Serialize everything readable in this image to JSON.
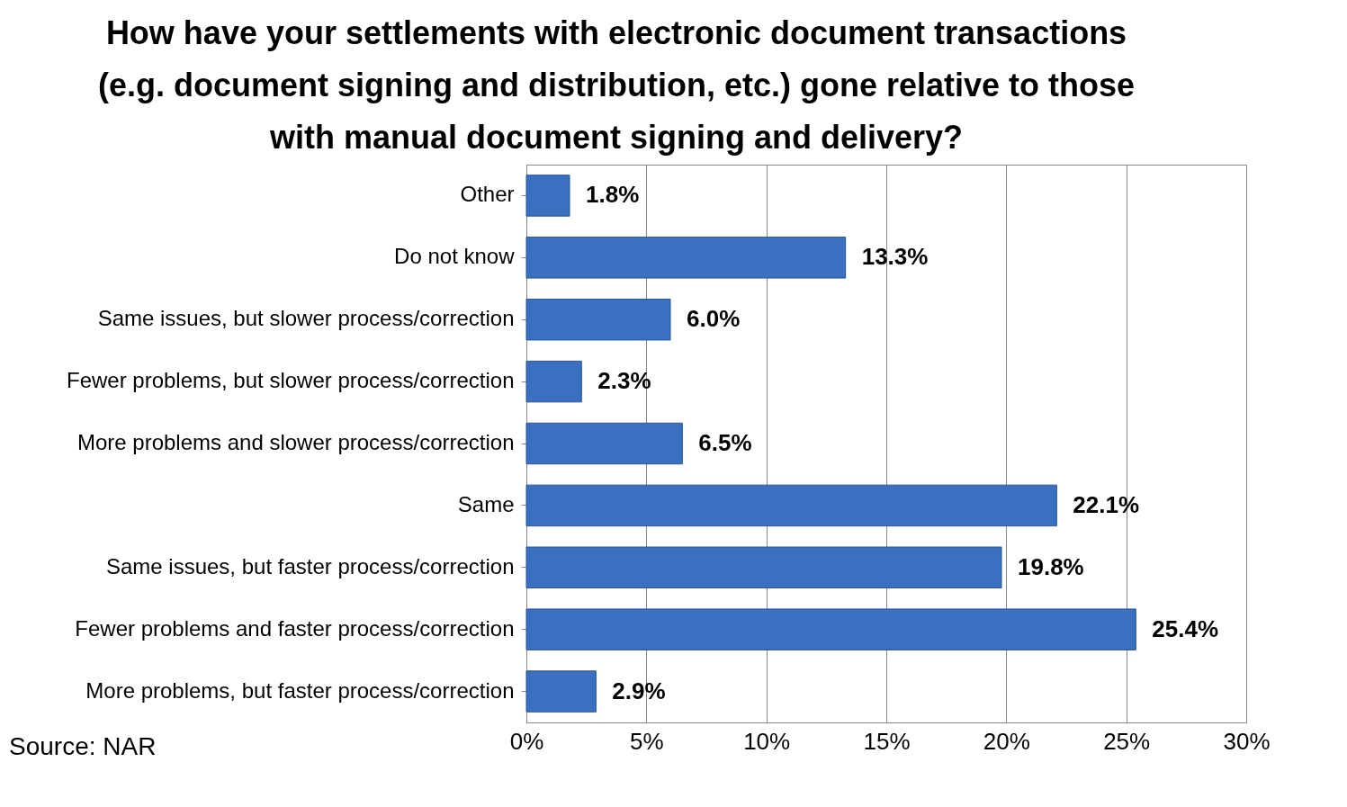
{
  "chart_data": {
    "type": "bar",
    "orientation": "horizontal",
    "title": "How have your settlements with electronic document transactions\n(e.g. document signing and distribution, etc.) gone relative to those\nwith manual document signing and delivery?",
    "categories": [
      "Other",
      "Do not know",
      "Same issues, but slower process/correction",
      "Fewer problems, but slower process/correction",
      "More problems and slower process/correction",
      "Same",
      "Same issues, but faster process/correction",
      "Fewer problems and faster process/correction",
      "More problems, but faster process/correction"
    ],
    "values": [
      1.8,
      13.3,
      6.0,
      2.3,
      6.5,
      22.1,
      19.8,
      25.4,
      2.9
    ],
    "value_labels": [
      "1.8%",
      "13.3%",
      "6.0%",
      "2.3%",
      "6.5%",
      "22.1%",
      "19.8%",
      "25.4%",
      "2.9%"
    ],
    "color": "#3b70c0",
    "xlim": [
      0,
      30
    ],
    "xticks": [
      {
        "value": 0,
        "label": "0%"
      },
      {
        "value": 5,
        "label": "5%"
      },
      {
        "value": 10,
        "label": "10%"
      },
      {
        "value": 15,
        "label": "15%"
      },
      {
        "value": 20,
        "label": "20%"
      },
      {
        "value": 25,
        "label": "25%"
      },
      {
        "value": 30,
        "label": "30%"
      }
    ],
    "grid": "x",
    "annotations": [
      "Source: NAR"
    ]
  }
}
